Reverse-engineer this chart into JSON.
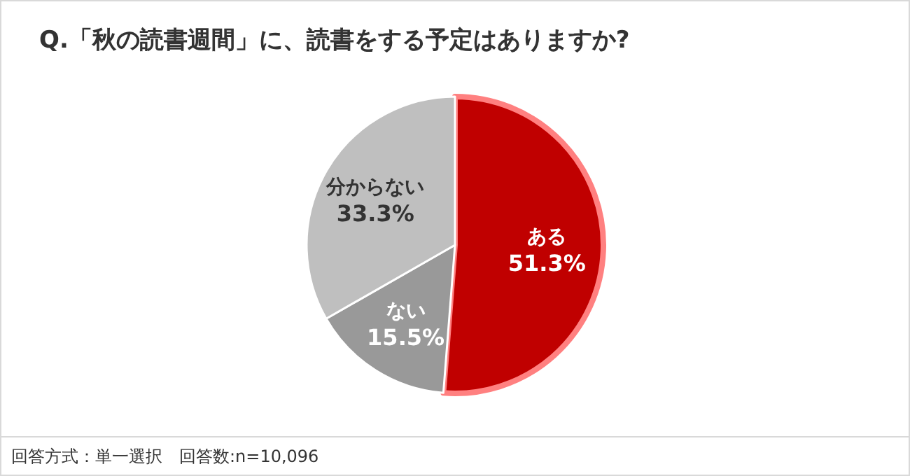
{
  "chart_data": {
    "type": "pie",
    "title": "Q.「秋の読書週間」に、読書をする予定はありますか?",
    "categories": [
      "ある",
      "ない",
      "分からない"
    ],
    "values": [
      51.3,
      15.5,
      33.3
    ],
    "value_labels": [
      "51.3%",
      "15.5%",
      "33.3%"
    ],
    "colors": [
      "#c00000",
      "#999999",
      "#bfbfbf"
    ],
    "annotations": [
      "回答方式：単一選択　回答数:n=10,096"
    ]
  }
}
